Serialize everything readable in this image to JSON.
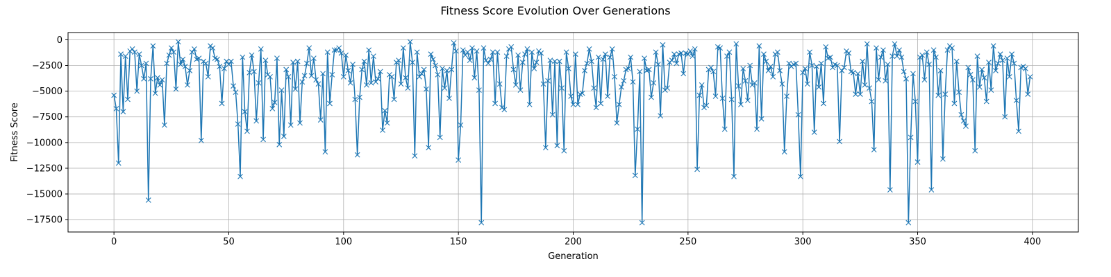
{
  "chart_data": {
    "type": "line",
    "title": "Fitness Score Evolution Over Generations",
    "xlabel": "Generation",
    "ylabel": "Fitness Score",
    "xlim": [
      -20,
      420
    ],
    "ylim": [
      -18700,
      700
    ],
    "xticks": [
      0,
      50,
      100,
      150,
      200,
      250,
      300,
      350,
      400
    ],
    "xtick_labels": [
      "0",
      "50",
      "100",
      "150",
      "200",
      "250",
      "300",
      "350",
      "400"
    ],
    "yticks": [
      0,
      -2500,
      -5000,
      -7500,
      -10000,
      -12500,
      -15000,
      -17500
    ],
    "ytick_labels": [
      "0",
      "−2500",
      "−5000",
      "−7500",
      "−10000",
      "−12500",
      "−15000",
      "−17500"
    ],
    "grid": true,
    "marker": "x",
    "color": "#1f77b4",
    "series": [
      {
        "values": [
          -5400,
          -6700,
          -12000,
          -1400,
          -7000,
          -1600,
          -5800,
          -1100,
          -900,
          -1200,
          -5000,
          -1400,
          -2500,
          -3800,
          -2300,
          -15600,
          -3800,
          -600,
          -5200,
          -3700,
          -4400,
          -3900,
          -8300,
          -2300,
          -1500,
          -800,
          -1200,
          -4800,
          -200,
          -2400,
          -1900,
          -2600,
          -4400,
          -3000,
          -1200,
          -900,
          -1900,
          -1800,
          -9800,
          -2100,
          -2300,
          -3600,
          -600,
          -800,
          -1800,
          -1900,
          -2600,
          -6200,
          -2800,
          -2100,
          -2400,
          -2100,
          -4500,
          -5100,
          -8200,
          -13300,
          -1700,
          -7000,
          -8900,
          -3200,
          -1500,
          -3100,
          -7900,
          -4200,
          -900,
          -9700,
          -2000,
          -3400,
          -3600,
          -6700,
          -6100,
          -1800,
          -10200,
          -4900,
          -9400,
          -2900,
          -3600,
          -8300,
          -2200,
          -4800,
          -2100,
          -8100,
          -4100,
          -3500,
          -2300,
          -800,
          -3500,
          -1800,
          -3900,
          -4300,
          -7800,
          -3300,
          -10900,
          -1200,
          -6200,
          -3400,
          -1000,
          -1000,
          -800,
          -1300,
          -3600,
          -1500,
          -3000,
          -4200,
          -2400,
          -5800,
          -11200,
          -5600,
          -2900,
          -2100,
          -4400,
          -1000,
          -4200,
          -1600,
          -4100,
          -3800,
          -3100,
          -8800,
          -6900,
          -8100,
          -3400,
          -3600,
          -5800,
          -2200,
          -2000,
          -4300,
          -800,
          -3700,
          -4700,
          -200,
          -2200,
          -11300,
          -1200,
          -3600,
          -3300,
          -2900,
          -4800,
          -10500,
          -1400,
          -1900,
          -2500,
          -3400,
          -9500,
          -2800,
          -4700,
          -3000,
          -5700,
          -2900,
          -300,
          -1100,
          -11700,
          -8300,
          -1000,
          -1500,
          -1200,
          -2000,
          -800,
          -3700,
          -1100,
          -4900,
          -17800,
          -800,
          -2000,
          -2300,
          -1900,
          -1200,
          -6200,
          -1200,
          -4300,
          -6600,
          -6800,
          -1600,
          -900,
          -700,
          -2900,
          -4400,
          -1500,
          -4900,
          -2200,
          -1400,
          -900,
          -6300,
          -1200,
          -2800,
          -2200,
          -1100,
          -1300,
          -4300,
          -10500,
          -4000,
          -2000,
          -7300,
          -2100,
          -10300,
          -2100,
          -4700,
          -10800,
          -1200,
          -2800,
          -5500,
          -6300,
          -1400,
          -6300,
          -5300,
          -5200,
          -3000,
          -2300,
          -900,
          -2100,
          -4700,
          -6600,
          -1700,
          -6200,
          -1900,
          -1400,
          -5500,
          -1700,
          -900,
          -3600,
          -8100,
          -6300,
          -4600,
          -4000,
          -2900,
          -2800,
          -1700,
          -4100,
          -13200,
          -8700,
          -3100,
          -17800,
          -1800,
          -3000,
          -2900,
          -5600,
          -4200,
          -1200,
          -2400,
          -7400,
          -500,
          -4900,
          -4700,
          -2200,
          -2000,
          -1400,
          -2300,
          -1400,
          -1300,
          -3300,
          -1300,
          -1400,
          -1100,
          -1600,
          -900,
          -12600,
          -5400,
          -4400,
          -6600,
          -6400,
          -2900,
          -2700,
          -3100,
          -5500,
          -700,
          -800,
          -5700,
          -8700,
          -1600,
          -1200,
          -5800,
          -13300,
          -400,
          -4500,
          -6300,
          -2800,
          -4000,
          -5900,
          -2500,
          -4400,
          -4200,
          -8700,
          -600,
          -7700,
          -1400,
          -2100,
          -3000,
          -2600,
          -3600,
          -1400,
          -1200,
          -3000,
          -4300,
          -10900,
          -5500,
          -2300,
          -2600,
          -2400,
          -2300,
          -7300,
          -13300,
          -3200,
          -2800,
          -4300,
          -1200,
          -2500,
          -9000,
          -2600,
          -4600,
          -2300,
          -6200,
          -700,
          -1800,
          -1700,
          -2700,
          -2400,
          -2500,
          -9900,
          -3000,
          -2700,
          -1100,
          -1300,
          -3100,
          -3200,
          -5300,
          -3300,
          -5300,
          -2100,
          -4400,
          -400,
          -4700,
          -6000,
          -10700,
          -800,
          -3900,
          -1700,
          -1000,
          -4000,
          -2400,
          -14600,
          -1600,
          -400,
          -1600,
          -1000,
          -1700,
          -3100,
          -3800,
          -17800,
          -9500,
          -3300,
          -6000,
          -11900,
          -1700,
          -1500,
          -3900,
          -1200,
          -2400,
          -14600,
          -1000,
          -1700,
          -5400,
          -3000,
          -11600,
          -5300,
          -1000,
          -600,
          -800,
          -6200,
          -2100,
          -5100,
          -7300,
          -7900,
          -8400,
          -2700,
          -3400,
          -3900,
          -10800,
          -1600,
          -4600,
          -2900,
          -3700,
          -6000,
          -2200,
          -4900,
          -600,
          -3000,
          -2300,
          -1400,
          -2000,
          -7500,
          -1800,
          -3600,
          -1400,
          -2300,
          -5900,
          -8900,
          -2700,
          -2600,
          -2800,
          -5300,
          -3600
        ]
      }
    ]
  }
}
